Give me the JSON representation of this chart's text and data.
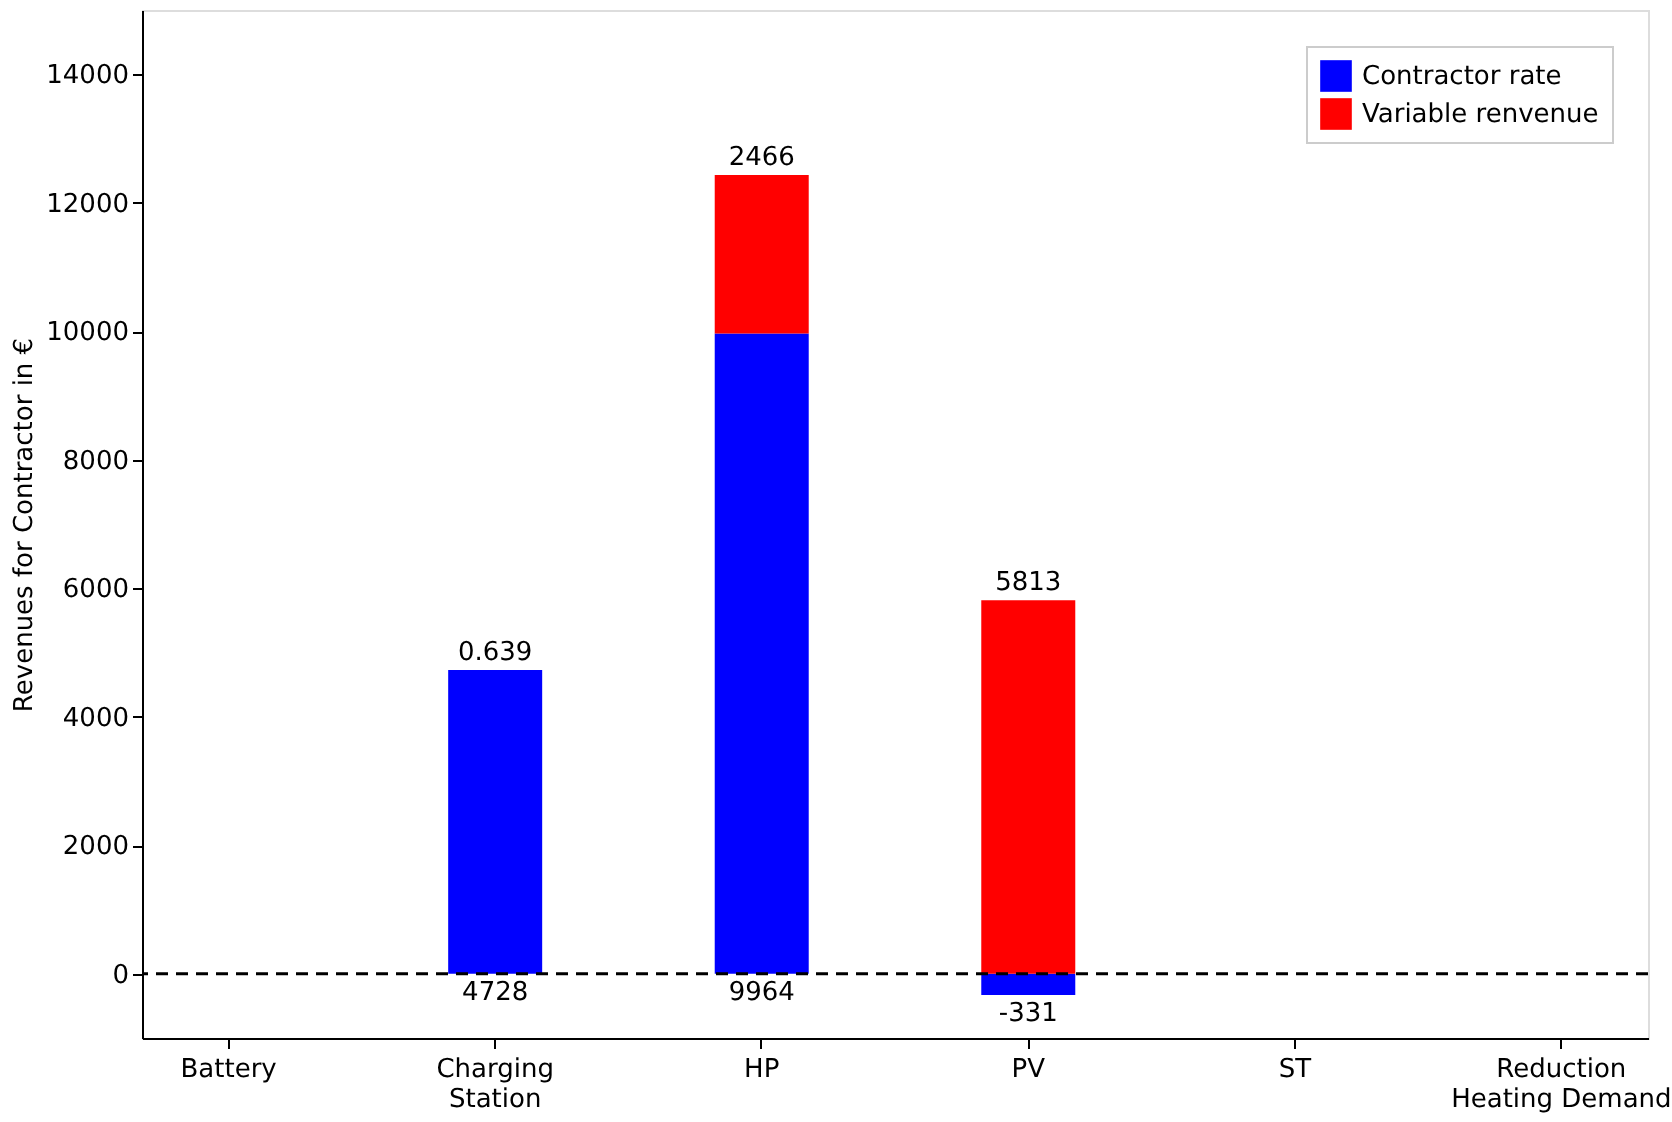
{
  "chart_data": {
    "type": "bar",
    "stacked": true,
    "ylabel": "Revenues for Contractor in €",
    "categories": [
      "Battery",
      "Charging\nStation",
      "HP",
      "PV",
      "ST",
      "Reduction\nHeating Demand"
    ],
    "series": [
      {
        "name": "Contractor rate",
        "color": "#0000ff",
        "values": [
          null,
          4728,
          9964,
          -331,
          null,
          null
        ]
      },
      {
        "name": "Variable renvenue",
        "color": "#ff0000",
        "values": [
          null,
          0.639,
          2466,
          5813,
          null,
          null
        ]
      }
    ],
    "ylim": [
      -1000,
      15000
    ],
    "yticks": [
      0,
      2000,
      4000,
      6000,
      8000,
      10000,
      12000,
      14000
    ],
    "ref_lines": [
      {
        "axis": "y",
        "value": 0,
        "color": "#000000",
        "line_style": "dashed"
      }
    ],
    "data_labels": true,
    "legend": "top right",
    "grid": false
  }
}
